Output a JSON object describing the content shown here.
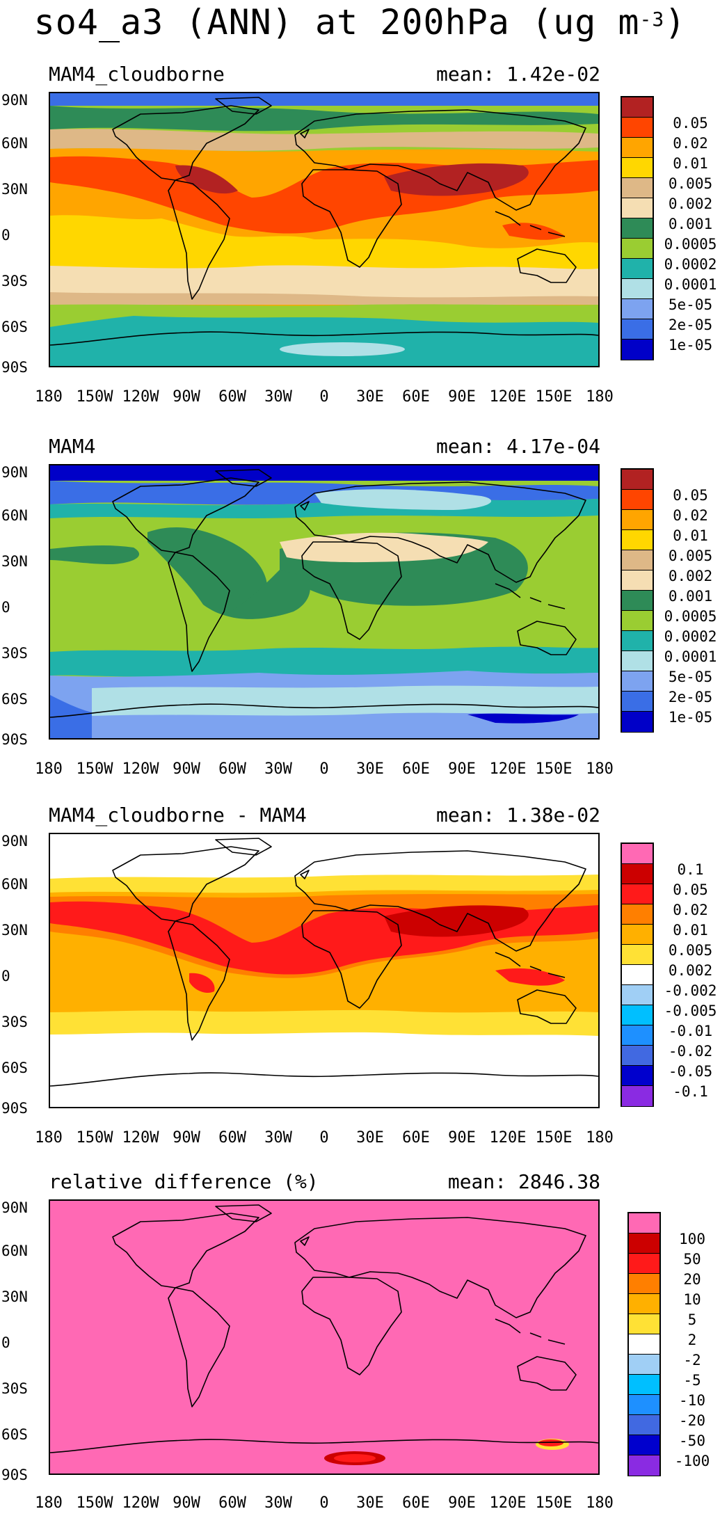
{
  "title": {
    "main": "so4_a3 (ANN) at 200hPa (ug m",
    "exponent": "-3",
    "close": ")"
  },
  "axes": {
    "lat_labels": [
      "90N",
      "60N",
      "30N",
      "0",
      "30S",
      "60S",
      "90S"
    ],
    "lon_labels": [
      "180",
      "150W",
      "120W",
      "90W",
      "60W",
      "30W",
      "0",
      "30E",
      "60E",
      "90E",
      "120E",
      "150E",
      "180"
    ]
  },
  "palettes": {
    "absolute": [
      "#0000c8",
      "#3a6ee6",
      "#7da3f0",
      "#b0e0e6",
      "#20b2aa",
      "#2e8b57",
      "#9acd32",
      "#f5deb3",
      "#deb887",
      "#ffd700",
      "#ffa500",
      "#ff4500",
      "#b22222"
    ],
    "difference": [
      "#8a2be2",
      "#0000cd",
      "#4169e1",
      "#1e90ff",
      "#00bfff",
      "#a0cff5",
      "#ffffff",
      "#ffe135",
      "#ffb000",
      "#ff7f00",
      "#ff1a1a",
      "#cc0000",
      "#ff69b4"
    ]
  },
  "panels": [
    {
      "title": "MAM4_cloudborne",
      "mean": "mean: 1.42e-02",
      "colorbar_labels": [
        "0.05",
        "0.02",
        "0.01",
        "0.005",
        "0.002",
        "0.001",
        "0.0005",
        "0.0002",
        "0.0001",
        "5e-05",
        "2e-05",
        "1e-05"
      ]
    },
    {
      "title": "MAM4",
      "mean": "mean: 4.17e-04",
      "colorbar_labels": [
        "0.05",
        "0.02",
        "0.01",
        "0.005",
        "0.002",
        "0.001",
        "0.0005",
        "0.0002",
        "0.0001",
        "5e-05",
        "2e-05",
        "1e-05"
      ]
    },
    {
      "title": "MAM4_cloudborne - MAM4",
      "mean": "mean: 1.38e-02",
      "colorbar_labels": [
        "0.1",
        "0.05",
        "0.02",
        "0.01",
        "0.005",
        "0.002",
        "-0.002",
        "-0.005",
        "-0.01",
        "-0.02",
        "-0.05",
        "-0.1"
      ]
    },
    {
      "title": "relative difference (%)",
      "mean": "mean: 2846.38",
      "colorbar_labels": [
        "100",
        "50",
        "20",
        "10",
        "5",
        "2",
        "-2",
        "-5",
        "-10",
        "-20",
        "-50",
        "-100"
      ]
    }
  ]
}
